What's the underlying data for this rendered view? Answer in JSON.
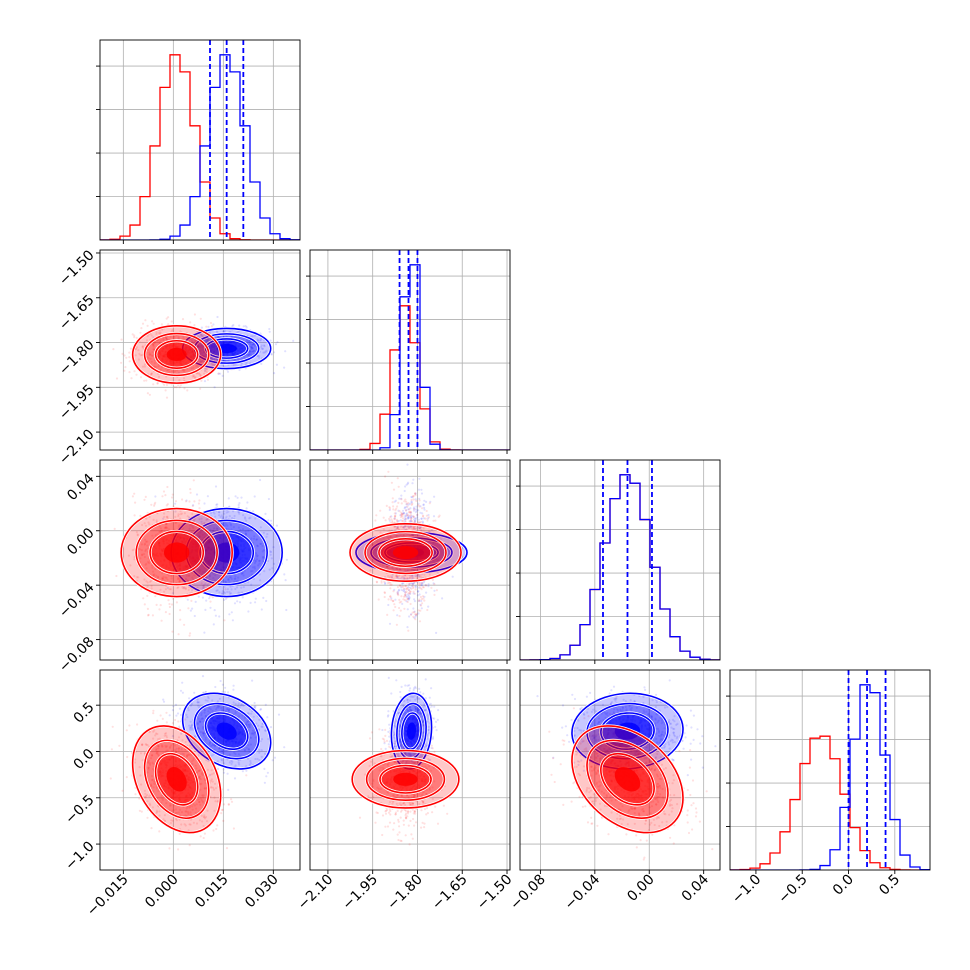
{
  "chart_data": {
    "type": "corner",
    "colors": {
      "blue": "#0000ff",
      "red": "#ff0000"
    },
    "series": [
      {
        "color": "#0000ff",
        "mean": [
          0.016,
          -1.82,
          -0.016,
          0.22
        ],
        "sd": [
          0.0055,
          0.028,
          0.017,
          0.17
        ],
        "corr_14": -0.3,
        "corr_24": 0.1,
        "corr_34": 0.05,
        "quantiles": [
          [
            0.011,
            0.016,
            0.021
          ],
          [
            -1.86,
            -1.83,
            -1.8
          ],
          [
            -0.034,
            -0.016,
            0.002
          ],
          [
            0.0,
            0.2,
            0.4
          ]
        ]
      },
      {
        "color": "#ff0000",
        "mean": [
          0.001,
          -1.84,
          -0.016,
          -0.3
        ],
        "sd": [
          0.0055,
          0.04,
          0.017,
          0.24
        ],
        "corr_14": -0.3,
        "corr_24": 0.0,
        "corr_34": -0.35
      }
    ],
    "params": [
      {
        "lim": [
          -0.022,
          0.038
        ],
        "ticks": [
          -0.015,
          0.0,
          0.015,
          0.03
        ],
        "tick_labels": [
          "−0.015",
          "0.000",
          "0.015",
          "0.030"
        ]
      },
      {
        "lim": [
          -2.16,
          -1.49
        ],
        "ticks": [
          -2.1,
          -1.95,
          -1.8,
          -1.65,
          -1.5
        ],
        "tick_labels": [
          "−2.10",
          "−1.95",
          "−1.80",
          "−1.65",
          "−1.50"
        ]
      },
      {
        "lim": [
          -0.095,
          0.052
        ],
        "ticks": [
          -0.08,
          -0.04,
          0.0,
          0.04
        ],
        "tick_labels": [
          "−0.08",
          "−0.04",
          "0.00",
          "0.04"
        ]
      },
      {
        "lim": [
          -1.28,
          0.88
        ],
        "ticks": [
          -1.0,
          -0.5,
          0.0,
          0.5
        ],
        "tick_labels": [
          "−1.0",
          "−0.5",
          "0.0",
          "0.5"
        ]
      }
    ],
    "hist_bins": 20,
    "contour_levels": [
      0.39,
      0.86,
      0.99
    ],
    "grid": true,
    "legend": "none",
    "title": "",
    "xlabel": "",
    "ylabel": ""
  }
}
